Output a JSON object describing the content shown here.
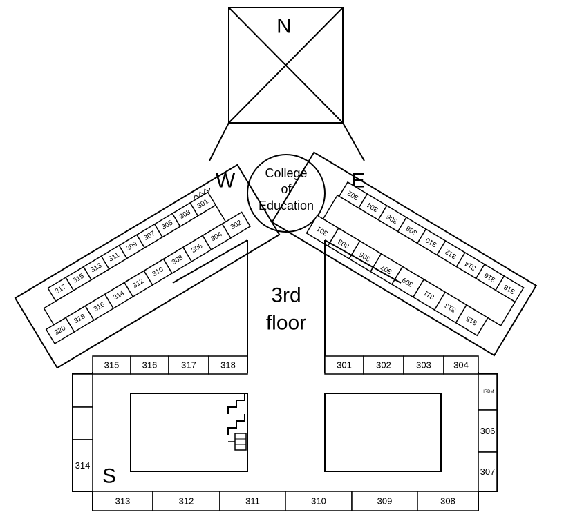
{
  "compass": {
    "north": "N",
    "west": "W",
    "east": "E",
    "south": "S"
  },
  "center_label": [
    "College",
    "of",
    "Education"
  ],
  "floor_label": [
    "3rd",
    "floor"
  ],
  "west_wing": {
    "outer_rooms": [
      "301",
      "303",
      "305",
      "307",
      "309",
      "311",
      "313",
      "315",
      "317"
    ],
    "inner_rooms": [
      "302",
      "304",
      "306",
      "308",
      "310",
      "312",
      "314",
      "316",
      "318",
      "320"
    ]
  },
  "east_wing": {
    "outer_rooms": [
      "302",
      "304",
      "306",
      "308",
      "310",
      "312",
      "314",
      "316",
      "318"
    ],
    "inner_rooms": [
      "301",
      "303",
      "305",
      "307",
      "309",
      "311",
      "313",
      "315"
    ]
  },
  "south_block": {
    "top_left_rooms": [
      "315",
      "316",
      "317",
      "318"
    ],
    "top_right_rooms": [
      "301",
      "302",
      "303",
      "304"
    ],
    "bottom_rooms": [
      "313",
      "312",
      "311",
      "310",
      "309",
      "308"
    ],
    "left_rooms": [
      "",
      "",
      "314"
    ],
    "right_rooms": [
      "HRDM",
      "306",
      "307"
    ]
  }
}
